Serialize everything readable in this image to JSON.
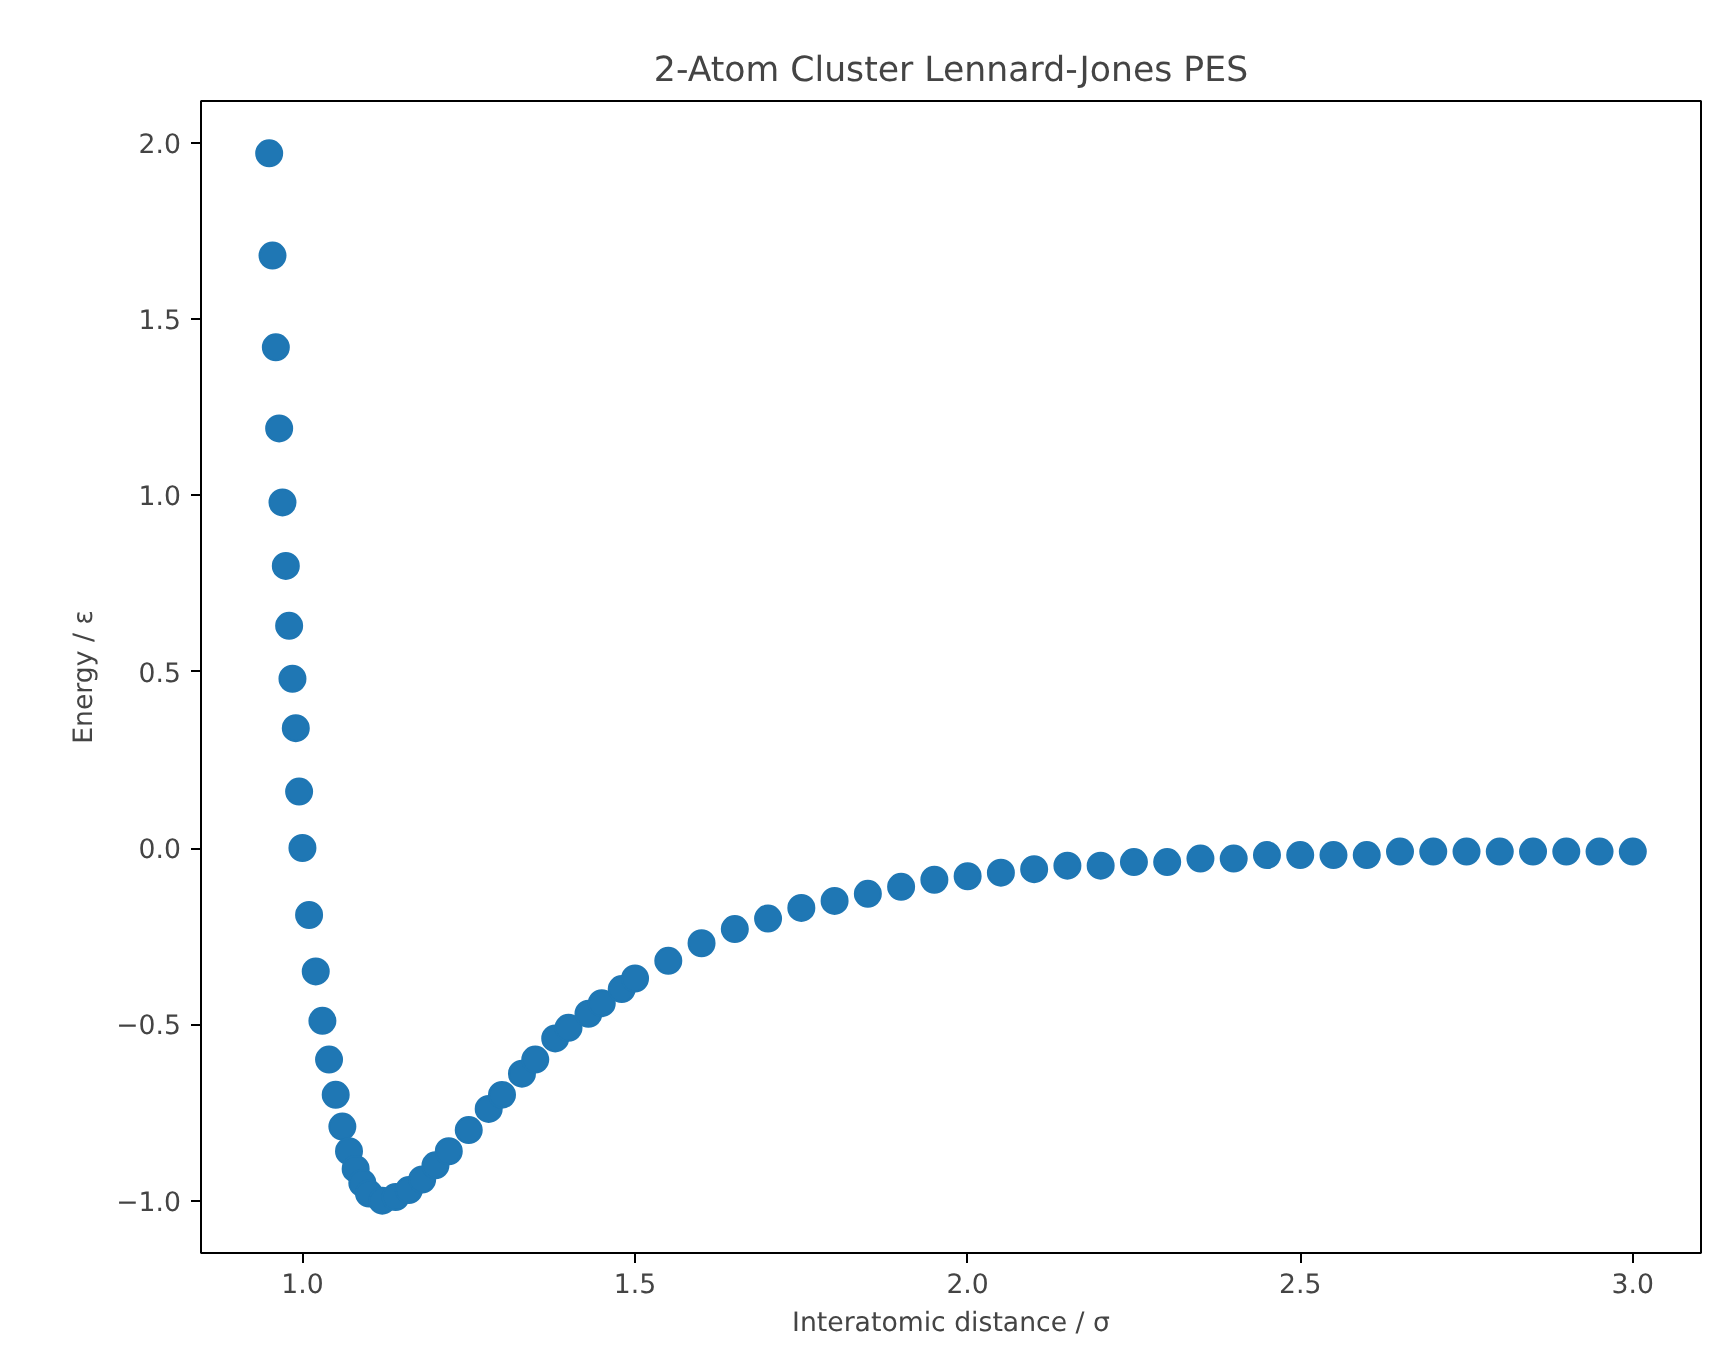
{
  "chart_data": {
    "type": "scatter",
    "title": "2-Atom Cluster Lennard-Jones PES",
    "xlabel": "Interatomic distance / σ",
    "ylabel": "Energy / ε",
    "x": [
      0.95,
      0.955,
      0.96,
      0.965,
      0.97,
      0.975,
      0.98,
      0.985,
      0.99,
      0.995,
      1.0,
      1.01,
      1.02,
      1.03,
      1.04,
      1.05,
      1.06,
      1.07,
      1.08,
      1.09,
      1.1,
      1.12,
      1.14,
      1.16,
      1.18,
      1.2,
      1.22,
      1.25,
      1.28,
      1.3,
      1.33,
      1.35,
      1.38,
      1.4,
      1.43,
      1.45,
      1.48,
      1.5,
      1.55,
      1.6,
      1.65,
      1.7,
      1.75,
      1.8,
      1.85,
      1.9,
      1.95,
      2.0,
      2.05,
      2.1,
      2.15,
      2.2,
      2.25,
      2.3,
      2.35,
      2.4,
      2.45,
      2.5,
      2.55,
      2.6,
      2.65,
      2.7,
      2.75,
      2.8,
      2.85,
      2.9,
      2.95,
      3.0
    ],
    "series": [
      {
        "color": "#1f77b4",
        "values": [
          1.97,
          1.68,
          1.42,
          1.19,
          0.98,
          0.8,
          0.63,
          0.48,
          0.34,
          0.16,
          0.0,
          -0.19,
          -0.35,
          -0.49,
          -0.6,
          -0.7,
          -0.79,
          -0.86,
          -0.91,
          -0.95,
          -0.98,
          -1.0,
          -0.99,
          -0.97,
          -0.94,
          -0.9,
          -0.86,
          -0.8,
          -0.74,
          -0.7,
          -0.64,
          -0.6,
          -0.54,
          -0.51,
          -0.47,
          -0.44,
          -0.4,
          -0.37,
          -0.32,
          -0.27,
          -0.23,
          -0.2,
          -0.17,
          -0.15,
          -0.13,
          -0.11,
          -0.09,
          -0.08,
          -0.07,
          -0.06,
          -0.05,
          -0.05,
          -0.04,
          -0.04,
          -0.03,
          -0.03,
          -0.02,
          -0.02,
          -0.02,
          -0.02,
          -0.01,
          -0.01,
          -0.01,
          -0.01,
          -0.01,
          -0.01,
          -0.01,
          -0.01
        ]
      }
    ],
    "xlim": [
      0.8475,
      3.1025
    ],
    "ylim": [
      -1.1485,
      2.1185
    ],
    "xticks": [
      {
        "value": 1,
        "label": "1.0"
      },
      1.5,
      {
        "value": 2,
        "label": "2.0"
      },
      2.5,
      {
        "value": 3,
        "label": "3.0"
      }
    ],
    "yticks": [
      {
        "value": -1,
        "label": "−1.0"
      },
      -0.5,
      {
        "value": 0,
        "label": "0.0"
      },
      0.5,
      {
        "value": 1,
        "label": "1.0"
      },
      1.5,
      {
        "value": 2,
        "label": "2.0"
      }
    ],
    "marker": "circle",
    "grid": false
  }
}
